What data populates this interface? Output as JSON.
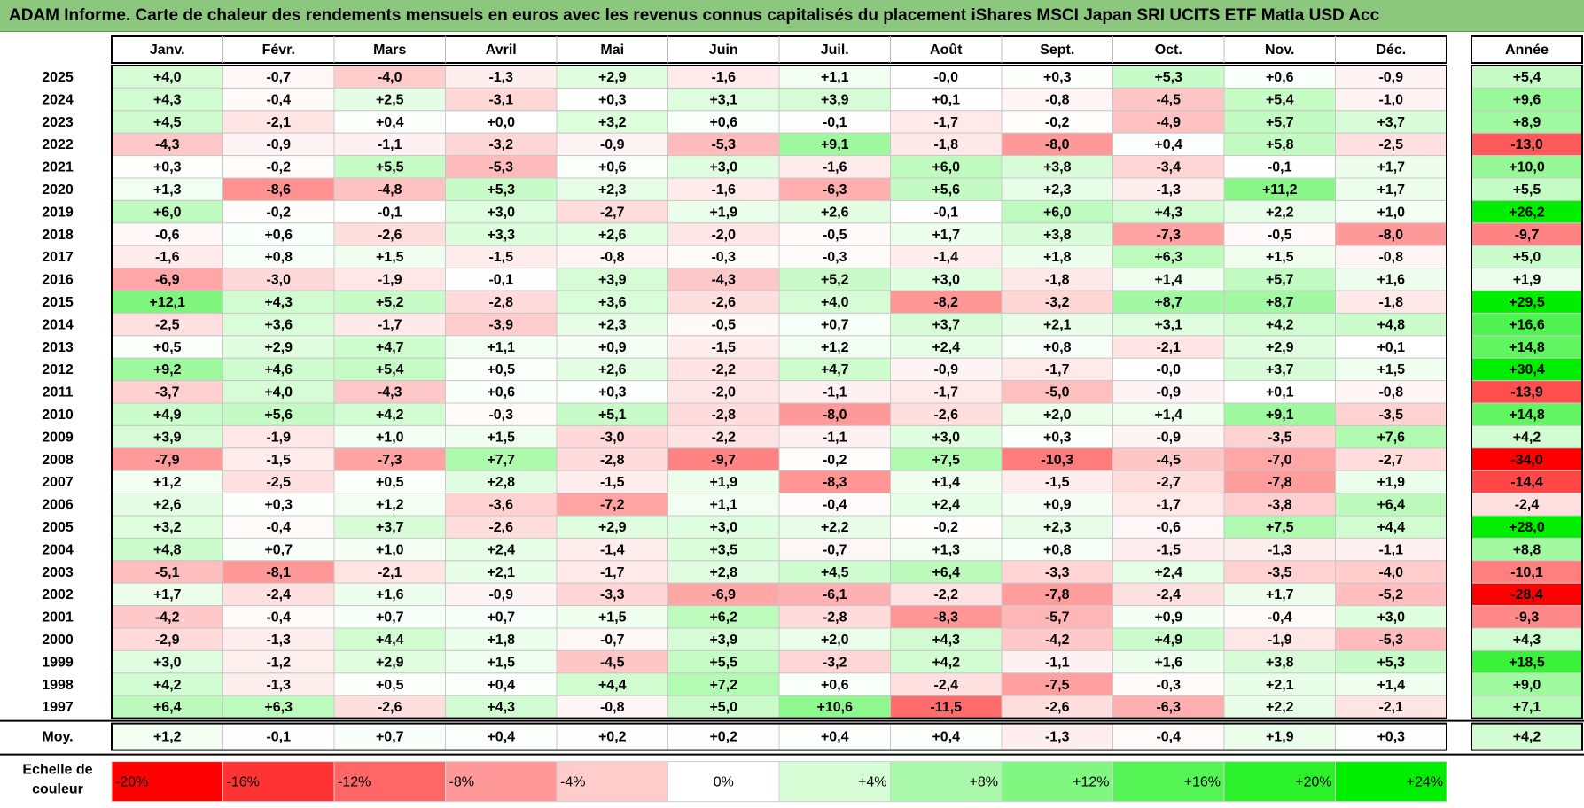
{
  "title": "ADAM Informe. Carte de chaleur des rendements mensuels en euros avec les revenus connus capitalisés du placement iShares MSCI Japan SRI UCITS ETF Matla USD Acc",
  "chart_data": {
    "type": "heatmap",
    "months": [
      "Janv.",
      "Févr.",
      "Mars",
      "Avril",
      "Mai",
      "Juin",
      "Juil.",
      "Août",
      "Sept.",
      "Oct.",
      "Nov.",
      "Déc."
    ],
    "year_header": "Année",
    "rows": [
      {
        "year": "2025",
        "values": [
          4.0,
          -0.7,
          -4.0,
          -1.3,
          2.9,
          -1.6,
          1.1,
          -0.0,
          0.3,
          5.3,
          0.6,
          -0.9
        ],
        "annual": 5.4
      },
      {
        "year": "2024",
        "values": [
          4.3,
          -0.4,
          2.5,
          -3.1,
          0.3,
          3.1,
          3.9,
          0.1,
          -0.8,
          -4.5,
          5.4,
          -1.0
        ],
        "annual": 9.6
      },
      {
        "year": "2023",
        "values": [
          4.5,
          -2.1,
          0.4,
          0.0,
          3.2,
          0.6,
          -0.1,
          -1.7,
          -0.2,
          -4.9,
          5.7,
          3.7
        ],
        "annual": 8.9
      },
      {
        "year": "2022",
        "values": [
          -4.3,
          -0.9,
          -1.1,
          -3.2,
          -0.9,
          -5.3,
          9.1,
          -1.8,
          -8.0,
          0.4,
          5.8,
          -2.5
        ],
        "annual": -13.0
      },
      {
        "year": "2021",
        "values": [
          0.3,
          -0.2,
          5.5,
          -5.3,
          0.6,
          3.0,
          -1.6,
          6.0,
          3.8,
          -3.4,
          -0.1,
          1.7
        ],
        "annual": 10.0
      },
      {
        "year": "2020",
        "values": [
          1.3,
          -8.6,
          -4.8,
          5.3,
          2.3,
          -1.6,
          -6.3,
          5.6,
          2.3,
          -1.3,
          11.2,
          1.7
        ],
        "annual": 5.5
      },
      {
        "year": "2019",
        "values": [
          6.0,
          -0.2,
          -0.1,
          3.0,
          -2.7,
          1.9,
          2.6,
          -0.1,
          6.0,
          4.3,
          2.2,
          1.0
        ],
        "annual": 26.2
      },
      {
        "year": "2018",
        "values": [
          -0.6,
          0.6,
          -2.6,
          3.3,
          2.6,
          -2.0,
          -0.5,
          1.7,
          3.8,
          -7.3,
          -0.5,
          -8.0
        ],
        "annual": -9.7
      },
      {
        "year": "2017",
        "values": [
          -1.6,
          0.8,
          1.5,
          -1.5,
          -0.8,
          -0.3,
          -0.3,
          -1.4,
          1.8,
          6.3,
          1.5,
          -0.8
        ],
        "annual": 5.0
      },
      {
        "year": "2016",
        "values": [
          -6.9,
          -3.0,
          -1.9,
          -0.1,
          3.9,
          -4.3,
          5.2,
          3.0,
          -1.8,
          1.4,
          5.7,
          1.6
        ],
        "annual": 1.9
      },
      {
        "year": "2015",
        "values": [
          12.1,
          4.3,
          5.2,
          -2.8,
          3.6,
          -2.6,
          4.0,
          -8.2,
          -3.2,
          8.7,
          8.7,
          -1.8
        ],
        "annual": 29.5
      },
      {
        "year": "2014",
        "values": [
          -2.5,
          3.6,
          -1.7,
          -3.9,
          2.3,
          -0.5,
          0.7,
          3.7,
          2.1,
          3.1,
          4.2,
          4.8
        ],
        "annual": 16.6
      },
      {
        "year": "2013",
        "values": [
          0.5,
          2.9,
          4.7,
          1.1,
          0.9,
          -1.5,
          1.2,
          2.4,
          0.8,
          -2.1,
          2.9,
          0.1
        ],
        "annual": 14.8
      },
      {
        "year": "2012",
        "values": [
          9.2,
          4.6,
          5.4,
          0.5,
          2.6,
          -2.2,
          4.7,
          -0.9,
          -1.7,
          -0.0,
          3.7,
          1.5
        ],
        "annual": 30.4
      },
      {
        "year": "2011",
        "values": [
          -3.7,
          4.0,
          -4.3,
          0.6,
          0.3,
          -2.0,
          -1.1,
          -1.7,
          -5.0,
          -0.9,
          0.1,
          -0.8
        ],
        "annual": -13.9
      },
      {
        "year": "2010",
        "values": [
          4.9,
          5.6,
          4.2,
          -0.3,
          5.1,
          -2.8,
          -8.0,
          -2.6,
          2.0,
          1.4,
          9.1,
          -3.5
        ],
        "annual": 14.8
      },
      {
        "year": "2009",
        "values": [
          3.9,
          -1.9,
          1.0,
          1.5,
          -3.0,
          -2.2,
          -1.1,
          3.0,
          0.3,
          -0.9,
          -3.5,
          7.6
        ],
        "annual": 4.2
      },
      {
        "year": "2008",
        "values": [
          -7.9,
          -1.5,
          -7.3,
          7.7,
          -2.8,
          -9.7,
          -0.2,
          7.5,
          -10.3,
          -4.5,
          -7.0,
          -2.7
        ],
        "annual": -34.0
      },
      {
        "year": "2007",
        "values": [
          1.2,
          -2.5,
          0.5,
          2.8,
          -1.5,
          1.9,
          -8.3,
          1.4,
          -1.5,
          -2.7,
          -7.8,
          1.9
        ],
        "annual": -14.4
      },
      {
        "year": "2006",
        "values": [
          2.6,
          0.3,
          1.2,
          -3.6,
          -7.2,
          1.1,
          -0.4,
          2.4,
          0.9,
          -1.7,
          -3.8,
          6.4
        ],
        "annual": -2.4
      },
      {
        "year": "2005",
        "values": [
          3.2,
          -0.4,
          3.7,
          -2.6,
          2.9,
          3.0,
          2.2,
          -0.2,
          2.3,
          -0.6,
          7.5,
          4.4
        ],
        "annual": 28.0
      },
      {
        "year": "2004",
        "values": [
          4.8,
          0.7,
          1.0,
          2.4,
          -1.4,
          3.5,
          -0.7,
          1.3,
          0.8,
          -1.5,
          -1.3,
          -1.1
        ],
        "annual": 8.8
      },
      {
        "year": "2003",
        "values": [
          -5.1,
          -8.1,
          -2.1,
          2.1,
          -1.7,
          2.8,
          4.5,
          6.4,
          -3.3,
          2.4,
          -3.5,
          -4.0
        ],
        "annual": -10.1
      },
      {
        "year": "2002",
        "values": [
          1.7,
          -2.4,
          1.6,
          -0.9,
          -3.3,
          -6.9,
          -6.1,
          -2.2,
          -7.8,
          -2.4,
          1.7,
          -5.2
        ],
        "annual": -28.4
      },
      {
        "year": "2001",
        "values": [
          -4.2,
          -0.4,
          0.7,
          0.7,
          1.5,
          6.2,
          -2.8,
          -8.3,
          -5.7,
          0.9,
          -0.4,
          3.0
        ],
        "annual": -9.3
      },
      {
        "year": "2000",
        "values": [
          -2.9,
          -1.3,
          4.4,
          1.8,
          -0.7,
          3.9,
          2.0,
          4.3,
          -4.2,
          4.9,
          -1.9,
          -5.3
        ],
        "annual": 4.3
      },
      {
        "year": "1999",
        "values": [
          3.0,
          -1.2,
          2.9,
          1.5,
          -4.5,
          5.5,
          -3.2,
          4.2,
          -1.1,
          1.6,
          3.8,
          5.3
        ],
        "annual": 18.5
      },
      {
        "year": "1998",
        "values": [
          4.2,
          -1.3,
          0.5,
          0.4,
          4.4,
          7.2,
          0.6,
          -2.4,
          -7.5,
          -0.3,
          2.1,
          1.4
        ],
        "annual": 9.0
      },
      {
        "year": "1997",
        "values": [
          6.4,
          6.3,
          -2.6,
          4.3,
          -0.8,
          5.0,
          10.6,
          -11.5,
          -2.6,
          -6.3,
          2.2,
          -2.1
        ],
        "annual": 7.1
      }
    ],
    "average": {
      "label": "Moy.",
      "values": [
        1.2,
        -0.1,
        0.7,
        0.4,
        0.2,
        0.2,
        0.4,
        0.4,
        -1.3,
        -0.4,
        1.9,
        0.3
      ],
      "annual": 4.2
    },
    "scale": {
      "label_line1": "Echelle de",
      "label_line2": "couleur",
      "stops": [
        -20,
        -16,
        -12,
        -8,
        -4,
        0,
        4,
        8,
        12,
        16,
        20,
        24
      ],
      "labels": [
        "-20%",
        "-16%",
        "-12%",
        "-8%",
        "-4%",
        "0%",
        "+4%",
        "+8%",
        "+12%",
        "+16%",
        "+20%",
        "+24%"
      ]
    },
    "colors": {
      "title_bg": "#8cc77e",
      "max_negative": "#ff0000",
      "neutral": "#ffffff",
      "max_positive": "#00ee00"
    }
  }
}
